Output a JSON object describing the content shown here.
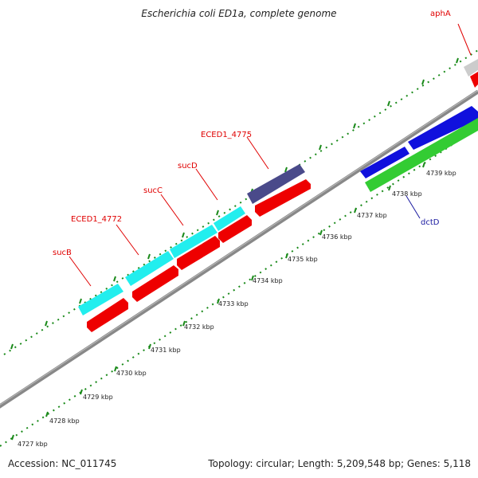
{
  "title": "Escherichia coli ED1a, complete genome",
  "footer": {
    "accession": "Accession: NC_011745",
    "summary": "Topology: circular; Length: 5,209,548 bp; Genes: 5,118"
  },
  "scale_labels": [
    "4727 kbp",
    "4728 kbp",
    "4729 kbp",
    "4730 kbp",
    "4731 kbp",
    "4732 kbp",
    "4733 kbp",
    "4734 kbp",
    "4735 kbp",
    "4736 kbp",
    "4737 kbp",
    "4738 kbp",
    "4739 kbp"
  ],
  "gene_labels": [
    {
      "text": "aphA",
      "color": "#e00000"
    },
    {
      "text": "ECED1_4775",
      "color": "#e00000"
    },
    {
      "text": "sucD",
      "color": "#e00000"
    },
    {
      "text": "sucC",
      "color": "#e00000"
    },
    {
      "text": "ECED1_4772",
      "color": "#e00000"
    },
    {
      "text": "sucB",
      "color": "#e00000"
    },
    {
      "text": "dctD",
      "color": "#1a1aa0"
    }
  ],
  "colors": {
    "backbone": "#888888",
    "tick": "#1a8a1a",
    "gene_cds": "#ee0000",
    "gene_cyan": "#22eeee",
    "gene_navy": "#4a4a8a",
    "gene_blue": "#1010dd",
    "gene_green": "#33cc33",
    "gene_grey": "#cccccc"
  }
}
